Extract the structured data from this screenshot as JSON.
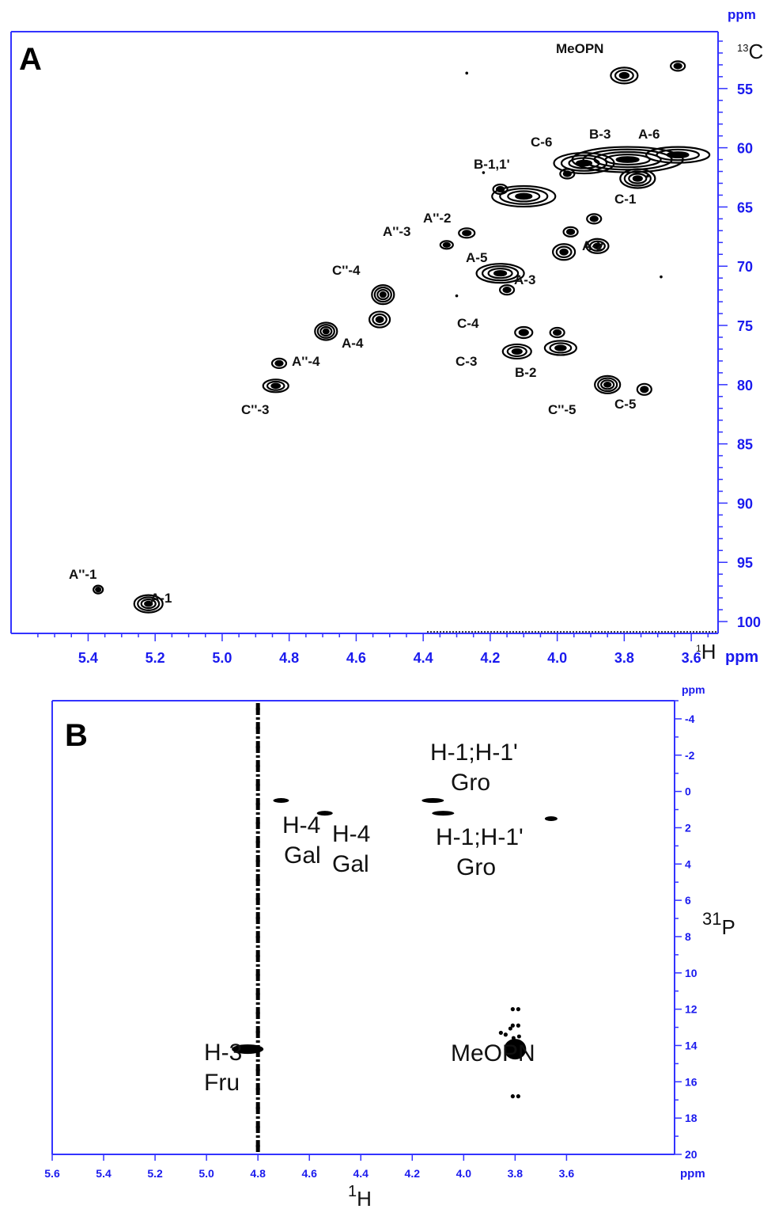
{
  "chart_data": [
    {
      "type": "scatter",
      "panel": "A",
      "x_nucleus": "1H",
      "x_unit": "ppm",
      "y_nucleus": "13C",
      "y_unit": "ppm",
      "y_unit_label": "ppm",
      "x_tick_values": [
        5.4,
        5.2,
        5.0,
        4.8,
        4.6,
        4.4,
        4.2,
        4.0,
        3.8,
        3.6
      ],
      "x_tick_labels": [
        "5.4",
        "5.2",
        "5.0",
        "4.8",
        "4.6",
        "4.4",
        "4.2",
        "4.0",
        "3.8",
        "3.6"
      ],
      "y_tick_values": [
        55,
        60,
        65,
        70,
        75,
        80,
        85,
        90,
        95,
        100
      ],
      "y_tick_labels": [
        "55",
        "60",
        "65",
        "70",
        "75",
        "80",
        "85",
        "90",
        "95",
        "100"
      ],
      "xlim": [
        5.63,
        3.52
      ],
      "ylim": [
        50.2,
        101.0
      ],
      "peaks": [
        {
          "label": "MeOPN",
          "x": 3.8,
          "y": 53.9
        },
        {
          "label": "",
          "x": 3.64,
          "y": 53.1
        },
        {
          "label": "B-3",
          "x": 3.79,
          "y": 61.0
        },
        {
          "label": "A-6",
          "x": 3.64,
          "y": 60.6
        },
        {
          "label": "C-6",
          "x": 3.92,
          "y": 61.3
        },
        {
          "label": "C-1",
          "x": 3.76,
          "y": 62.6
        },
        {
          "label": "B-1,1'",
          "x": 4.1,
          "y": 64.1
        },
        {
          "label": "",
          "x": 4.17,
          "y": 63.5
        },
        {
          "label": "",
          "x": 3.97,
          "y": 62.2
        },
        {
          "label": "",
          "x": 3.89,
          "y": 66.0
        },
        {
          "label": "",
          "x": 3.96,
          "y": 67.1
        },
        {
          "label": "A-2",
          "x": 3.88,
          "y": 68.3
        },
        {
          "label": "A-3",
          "x": 3.98,
          "y": 68.8
        },
        {
          "label": "A''-2",
          "x": 4.27,
          "y": 67.2
        },
        {
          "label": "A''-3",
          "x": 4.33,
          "y": 68.2
        },
        {
          "label": "A-5",
          "x": 4.17,
          "y": 70.6
        },
        {
          "label": "",
          "x": 4.15,
          "y": 72.0
        },
        {
          "label": "C''-4",
          "x": 4.52,
          "y": 72.4
        },
        {
          "label": "A-4",
          "x": 4.53,
          "y": 74.5
        },
        {
          "label": "A''-4",
          "x": 4.69,
          "y": 75.5
        },
        {
          "label": "C-4",
          "x": 4.1,
          "y": 75.6
        },
        {
          "label": "C-3",
          "x": 4.12,
          "y": 77.2
        },
        {
          "label": "B-2",
          "x": 3.99,
          "y": 76.9
        },
        {
          "label": "",
          "x": 4.0,
          "y": 75.6
        },
        {
          "label": "C''-3",
          "x": 4.84,
          "y": 80.1
        },
        {
          "label": "",
          "x": 4.83,
          "y": 78.2
        },
        {
          "label": "C''-5",
          "x": 3.85,
          "y": 80.0
        },
        {
          "label": "C-5",
          "x": 3.74,
          "y": 80.4
        },
        {
          "label": "A''-1",
          "x": 5.37,
          "y": 97.3
        },
        {
          "label": "A-1",
          "x": 5.22,
          "y": 98.5
        }
      ]
    },
    {
      "type": "scatter",
      "panel": "B",
      "x_nucleus": "1H",
      "x_unit": "ppm",
      "y_nucleus": "31P",
      "y_unit": "ppm",
      "y_unit_label": "ppm",
      "x_tick_values": [
        5.6,
        5.4,
        5.2,
        5.0,
        4.8,
        4.6,
        4.4,
        4.2,
        4.0,
        3.8,
        3.6
      ],
      "x_tick_labels": [
        "5.6",
        "5.4",
        "5.2",
        "5.0",
        "4.8",
        "4.6",
        "4.4",
        "4.2",
        "4.0",
        "3.8",
        "3.6"
      ],
      "y_tick_values": [
        -4,
        -2,
        0,
        2,
        4,
        6,
        8,
        10,
        12,
        14,
        16,
        18,
        20
      ],
      "y_tick_labels": [
        "-4",
        "-2",
        "0",
        "2",
        "4",
        "6",
        "8",
        "10",
        "12",
        "14",
        "16",
        "18",
        "20"
      ],
      "xlim": [
        5.6,
        3.18
      ],
      "ylim": [
        -5.0,
        20.0
      ],
      "peaks": [
        {
          "label": "H-4 Gal",
          "x": 4.71,
          "y": 0.5
        },
        {
          "label": "H-4 Gal",
          "x": 4.54,
          "y": 1.2
        },
        {
          "label": "H-1;H-1' Gro",
          "x": 4.12,
          "y": 0.5
        },
        {
          "label": "H-1;H-1' Gro",
          "x": 4.08,
          "y": 1.2
        },
        {
          "label": "",
          "x": 3.66,
          "y": 1.5
        },
        {
          "label": "H-3 Fru",
          "x": 4.84,
          "y": 14.2
        },
        {
          "label": "MeOPN",
          "x": 3.8,
          "y": 14.2
        }
      ],
      "artifact_line_x": 4.8
    }
  ],
  "panelA": {
    "letter": "A",
    "nucleus_y": "13C",
    "nucleus_x": "1H",
    "unit_y": "ppm",
    "unit_x": "ppm",
    "labels": {
      "meopn": "MeOPN",
      "c6": "C-6",
      "b3": "B-3",
      "a6": "A-6",
      "b11": "B-1,1'",
      "c1": "C-1",
      "app2": "A''-2",
      "app3": "A''-3",
      "a2": "A-2",
      "a5": "A-5",
      "a3": "A-3",
      "cpp4": "C''-4",
      "a4": "A-4",
      "app4": "A''-4",
      "c4": "C-4",
      "c3": "C-3",
      "b2": "B-2",
      "cpp3": "C''-3",
      "cpp5": "C''-5",
      "c5": "C-5",
      "app1": "A''-1",
      "a1": "A-1"
    }
  },
  "panelB": {
    "letter": "B",
    "nucleus_y": "31P",
    "nucleus_x": "1H",
    "unit_y": "ppm",
    "unit_x": "ppm",
    "labels": {
      "h1gro_top": "H-1;H-1'",
      "gro_top": "Gro",
      "h4_left": "H-4",
      "gal_left": "Gal",
      "h4_right": "H-4",
      "gal_right": "Gal",
      "h1gro_bottom": "H-1;H-1'",
      "gro_bottom": "Gro",
      "h3": "H-3",
      "fru": "Fru",
      "meopn": "MeOPN"
    }
  },
  "colors": {
    "axis": "#3333ff",
    "tick_label": "#1a1aee",
    "contour": "#000000"
  }
}
